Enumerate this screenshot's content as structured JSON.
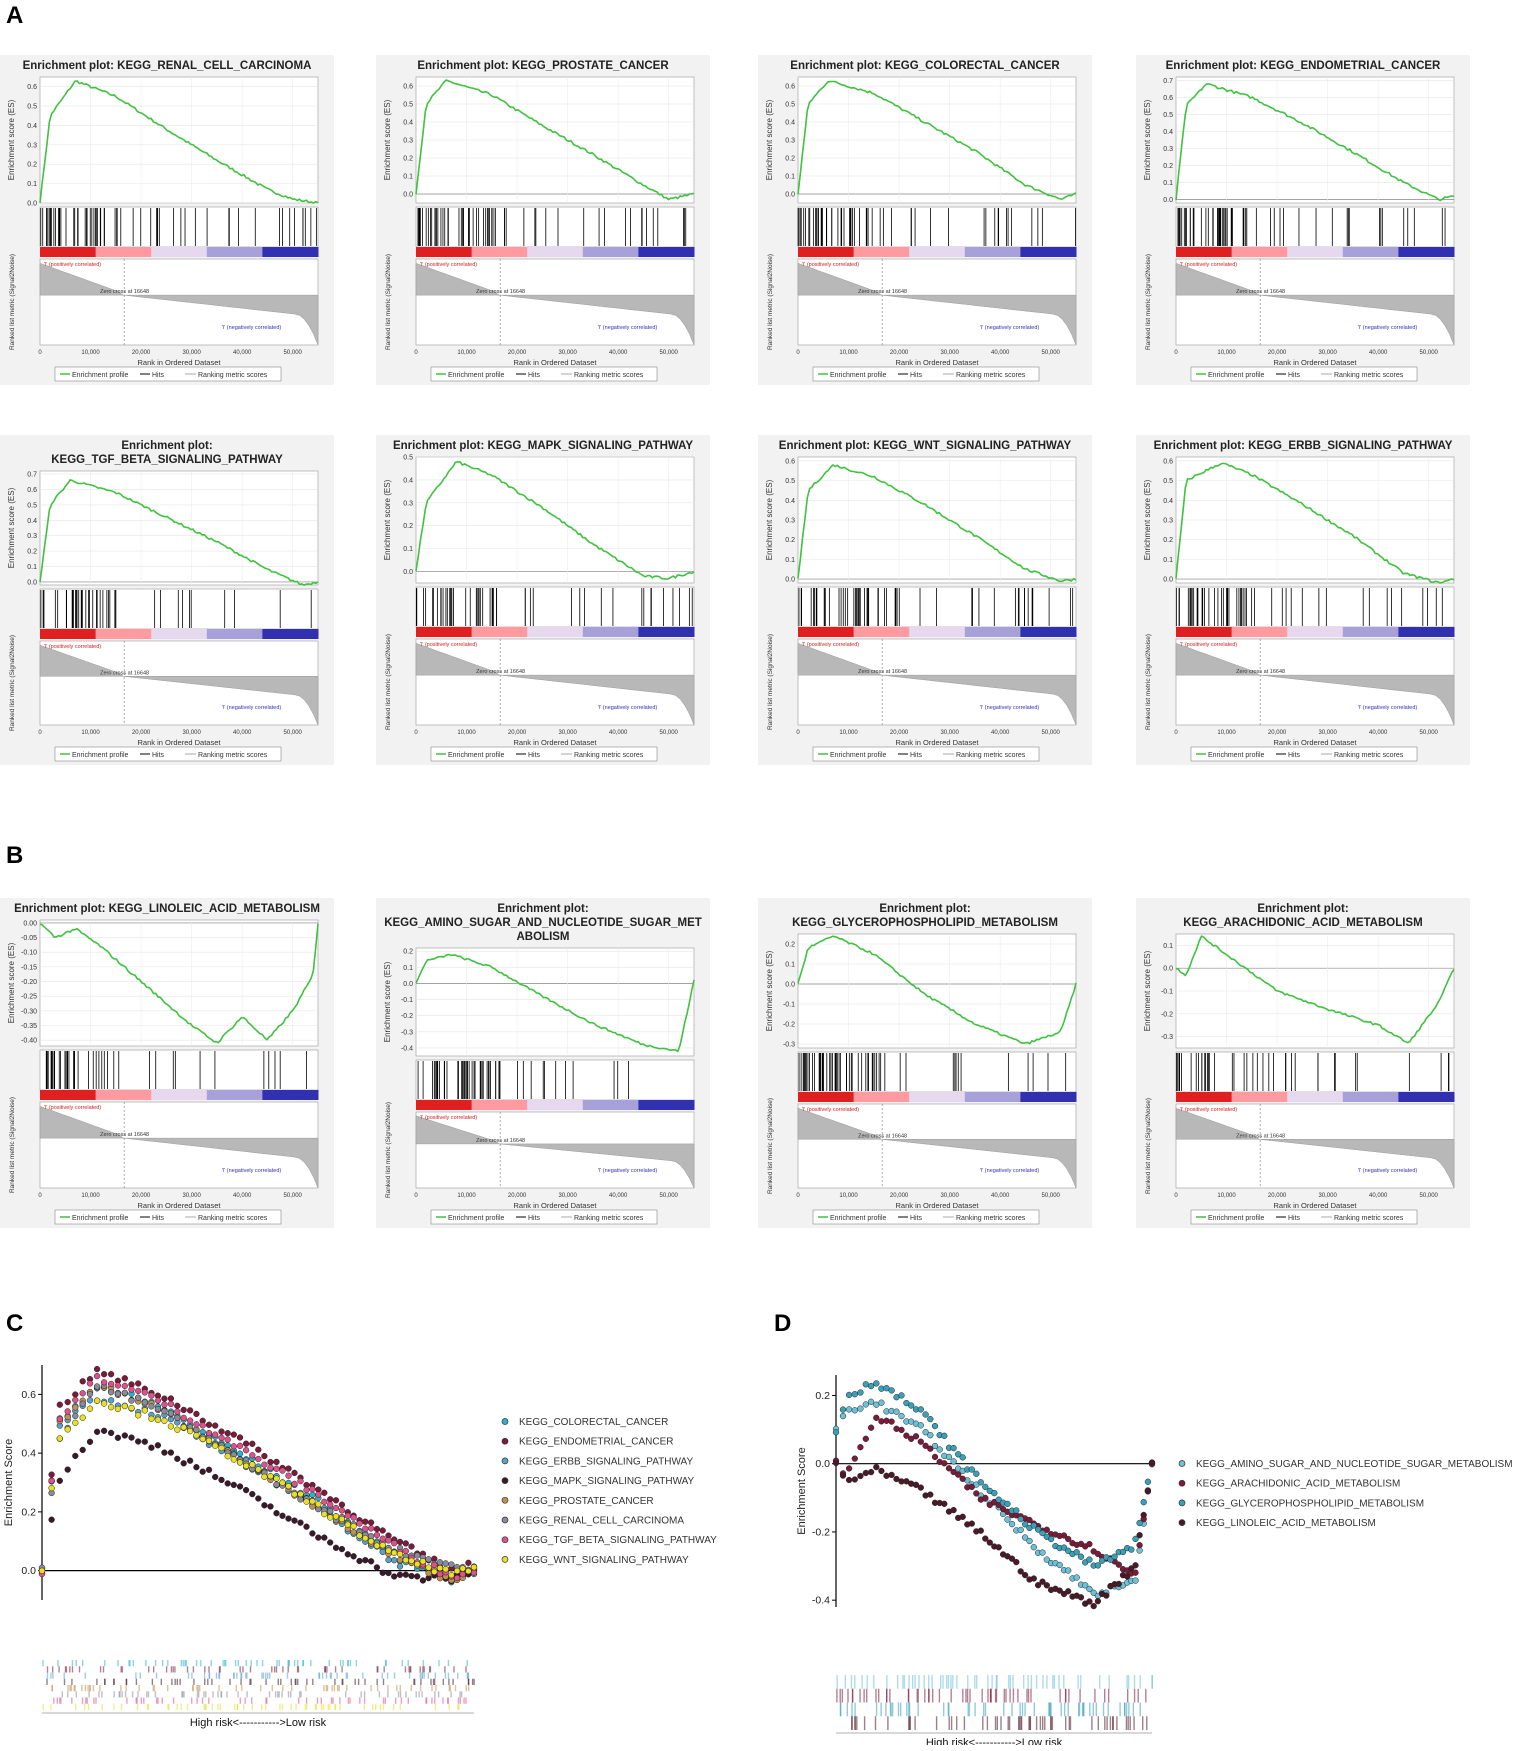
{
  "panels": {
    "A": "A",
    "B": "B",
    "C": "C",
    "D": "D"
  },
  "common": {
    "ylabel_es": "Enrichment score (ES)",
    "ylabel_metric": "Ranked list metric (Signal2Noise)",
    "xlabel": "Rank in Ordered Dataset",
    "legend_profile": "Enrichment profile",
    "legend_hits": "Hits",
    "legend_metric": "Ranking metric scores",
    "pos_label": "'l' (positively correlated)",
    "neg_label": "'l' (negatively correlated)",
    "zero_cross": "Zero cross at 16648",
    "x_ticks": [
      "0",
      "10,000",
      "20,000",
      "30,000",
      "40,000",
      "50,000"
    ]
  },
  "chart_data": [
    {
      "type": "line",
      "id": "A1",
      "title_lines": [
        "Enrichment plot: KEGG_RENAL_CELL_CARCINOMA"
      ],
      "ylim": [
        0,
        0.65
      ],
      "yticks": [
        "0.0",
        "0.1",
        "0.2",
        "0.3",
        "0.4",
        "0.5",
        "0.6"
      ],
      "x": [
        0,
        2000,
        7000,
        15000,
        25000,
        35000,
        45000,
        50000,
        55000
      ],
      "es": [
        0,
        0.45,
        0.63,
        0.55,
        0.38,
        0.22,
        0.07,
        0.02,
        0
      ]
    },
    {
      "type": "line",
      "id": "A2",
      "title_lines": [
        "Enrichment plot: KEGG_PROSTATE_CANCER"
      ],
      "ylim": [
        -0.05,
        0.65
      ],
      "yticks": [
        "0.0",
        "0.1",
        "0.2",
        "0.3",
        "0.4",
        "0.5",
        "0.6"
      ],
      "x": [
        0,
        2000,
        6000,
        15000,
        25000,
        35000,
        45000,
        50000,
        55000
      ],
      "es": [
        0,
        0.5,
        0.63,
        0.55,
        0.38,
        0.22,
        0.05,
        -0.03,
        0
      ]
    },
    {
      "type": "line",
      "id": "A3",
      "title_lines": [
        "Enrichment plot: KEGG_COLORECTAL_CANCER"
      ],
      "ylim": [
        -0.05,
        0.65
      ],
      "yticks": [
        "0.0",
        "0.1",
        "0.2",
        "0.3",
        "0.4",
        "0.5",
        "0.6"
      ],
      "x": [
        0,
        2000,
        6000,
        15000,
        25000,
        35000,
        45000,
        52000,
        55000
      ],
      "es": [
        0,
        0.5,
        0.63,
        0.56,
        0.4,
        0.24,
        0.05,
        -0.03,
        0
      ]
    },
    {
      "type": "line",
      "id": "A4",
      "title_lines": [
        "Enrichment plot: KEGG_ENDOMETRIAL_CANCER"
      ],
      "ylim": [
        -0.02,
        0.72
      ],
      "yticks": [
        "0.0",
        "0.1",
        "0.2",
        "0.3",
        "0.4",
        "0.5",
        "0.6",
        "0.7"
      ],
      "x": [
        0,
        2000,
        6000,
        15000,
        25000,
        35000,
        45000,
        52000,
        55000
      ],
      "es": [
        0,
        0.55,
        0.68,
        0.6,
        0.45,
        0.28,
        0.1,
        0,
        0.02
      ]
    },
    {
      "type": "line",
      "id": "A5",
      "title_lines": [
        "Enrichment plot:",
        "KEGG_TGF_BETA_SIGNALING_PATHWAY"
      ],
      "ylim": [
        -0.02,
        0.72
      ],
      "yticks": [
        "0.0",
        "0.1",
        "0.2",
        "0.3",
        "0.4",
        "0.5",
        "0.6",
        "0.7"
      ],
      "x": [
        0,
        2000,
        6000,
        15000,
        25000,
        35000,
        45000,
        52000,
        55000
      ],
      "es": [
        0,
        0.5,
        0.66,
        0.58,
        0.42,
        0.26,
        0.08,
        -0.02,
        0
      ]
    },
    {
      "type": "line",
      "id": "A6",
      "title_lines": [
        "Enrichment plot: KEGG_MAPK_SIGNALING_PATHWAY"
      ],
      "ylim": [
        -0.05,
        0.5
      ],
      "yticks": [
        "0.0",
        "0.1",
        "0.2",
        "0.3",
        "0.4",
        "0.5"
      ],
      "x": [
        0,
        2000,
        8000,
        15000,
        25000,
        35000,
        45000,
        50000,
        55000
      ],
      "es": [
        0,
        0.3,
        0.48,
        0.42,
        0.28,
        0.12,
        -0.02,
        -0.03,
        0
      ]
    },
    {
      "type": "line",
      "id": "A7",
      "title_lines": [
        "Enrichment plot: KEGG_WNT_SIGNALING_PATHWAY"
      ],
      "ylim": [
        -0.02,
        0.62
      ],
      "yticks": [
        "0.0",
        "0.1",
        "0.2",
        "0.3",
        "0.4",
        "0.5",
        "0.6"
      ],
      "x": [
        0,
        2000,
        7000,
        15000,
        25000,
        35000,
        45000,
        52000,
        55000
      ],
      "es": [
        0,
        0.45,
        0.58,
        0.52,
        0.38,
        0.22,
        0.05,
        -0.01,
        0
      ]
    },
    {
      "type": "line",
      "id": "A8",
      "title_lines": [
        "Enrichment plot: KEGG_ERBB_SIGNALING_PATHWAY"
      ],
      "ylim": [
        -0.02,
        0.62
      ],
      "yticks": [
        "0.0",
        "0.1",
        "0.2",
        "0.3",
        "0.4",
        "0.5",
        "0.6"
      ],
      "x": [
        0,
        2000,
        9000,
        15000,
        25000,
        35000,
        45000,
        52000,
        55000
      ],
      "es": [
        0,
        0.5,
        0.59,
        0.53,
        0.38,
        0.22,
        0.03,
        -0.02,
        0
      ]
    },
    {
      "type": "line",
      "id": "B1",
      "title_lines": [
        "Enrichment plot: KEGG_LINOLEIC_ACID_METABOLISM"
      ],
      "ylim": [
        -0.42,
        0.01
      ],
      "yticks": [
        "0.00",
        "-0.05",
        "-0.10",
        "-0.15",
        "-0.20",
        "-0.25",
        "-0.30",
        "-0.35",
        "-0.40"
      ],
      "x": [
        0,
        3000,
        7000,
        12000,
        20000,
        30000,
        35000,
        40000,
        45000,
        50000,
        54000,
        55000
      ],
      "es": [
        0,
        -0.05,
        -0.02,
        -0.08,
        -0.2,
        -0.35,
        -0.41,
        -0.32,
        -0.4,
        -0.3,
        -0.18,
        0
      ]
    },
    {
      "type": "line",
      "id": "B2",
      "title_lines": [
        "Enrichment plot:",
        "KEGG_AMINO_SUGAR_AND_NUCLEOTIDE_SUGAR_MET",
        "ABOLISM"
      ],
      "ylim": [
        -0.45,
        0.22
      ],
      "yticks": [
        "0.2",
        "0.1",
        "0.0",
        "-0.1",
        "-0.2",
        "-0.3",
        "-0.4"
      ],
      "x": [
        0,
        2000,
        7000,
        15000,
        25000,
        35000,
        45000,
        52000,
        55000
      ],
      "es": [
        0,
        0.14,
        0.18,
        0.1,
        -0.08,
        -0.25,
        -0.38,
        -0.42,
        0.02
      ]
    },
    {
      "type": "line",
      "id": "B3",
      "title_lines": [
        "Enrichment plot:",
        "KEGG_GLYCEROPHOSPHOLIPID_METABOLISM"
      ],
      "ylim": [
        -0.32,
        0.25
      ],
      "yticks": [
        "0.2",
        "0.1",
        "0.0",
        "-0.1",
        "-0.2",
        "-0.3"
      ],
      "x": [
        0,
        2000,
        7000,
        15000,
        25000,
        35000,
        45000,
        52000,
        55000
      ],
      "es": [
        0,
        0.18,
        0.24,
        0.15,
        -0.05,
        -0.2,
        -0.3,
        -0.24,
        0
      ]
    },
    {
      "type": "line",
      "id": "B4",
      "title_lines": [
        "Enrichment plot:",
        "KEGG_ARACHIDONIC_ACID_METABOLISM"
      ],
      "ylim": [
        -0.35,
        0.15
      ],
      "yticks": [
        "0.1",
        "0.0",
        "-0.1",
        "-0.2",
        "-0.3"
      ],
      "x": [
        0,
        2000,
        5000,
        10000,
        20000,
        30000,
        40000,
        46000,
        52000,
        55000
      ],
      "es": [
        0,
        -0.03,
        0.14,
        0.06,
        -0.1,
        -0.18,
        -0.25,
        -0.33,
        -0.15,
        0
      ]
    },
    {
      "type": "scatter",
      "id": "C",
      "ylabel": "Enrichment Score",
      "xlabel": "High risk<----------->Low risk",
      "yticks": [
        "0.0",
        "0.2",
        "0.4",
        "0.6"
      ],
      "ylim": [
        -0.1,
        0.7
      ],
      "series": [
        {
          "name": "KEGG_COLORECTAL_CANCER",
          "color": "#2bb3c9",
          "es": [
            0,
            0.5,
            0.63,
            0.56,
            0.4,
            0.24,
            0.05,
            -0.03,
            0
          ]
        },
        {
          "name": "KEGG_ENDOMETRIAL_CANCER",
          "color": "#7a1b3a",
          "es": [
            0,
            0.55,
            0.68,
            0.6,
            0.45,
            0.28,
            0.1,
            0,
            0.02
          ]
        },
        {
          "name": "KEGG_ERBB_SIGNALING_PATHWAY",
          "color": "#5aa0c8",
          "es": [
            0,
            0.5,
            0.59,
            0.53,
            0.38,
            0.22,
            0.03,
            -0.02,
            0
          ]
        },
        {
          "name": "KEGG_MAPK_SIGNALING_PATHWAY",
          "color": "#3a1a2a",
          "es": [
            0,
            0.3,
            0.48,
            0.42,
            0.28,
            0.12,
            -0.02,
            -0.03,
            0
          ]
        },
        {
          "name": "KEGG_PROSTATE_CANCER",
          "color": "#c09050",
          "es": [
            0,
            0.5,
            0.63,
            0.55,
            0.38,
            0.22,
            0.05,
            -0.03,
            0
          ]
        },
        {
          "name": "KEGG_RENAL_CELL_CARCINOMA",
          "color": "#8a8a9a",
          "es": [
            0,
            0.45,
            0.63,
            0.55,
            0.38,
            0.22,
            0.07,
            0.02,
            0
          ]
        },
        {
          "name": "KEGG_TGF_BETA_SIGNALING_PATHWAY",
          "color": "#e0508a",
          "es": [
            0,
            0.5,
            0.66,
            0.58,
            0.42,
            0.26,
            0.08,
            -0.02,
            0
          ]
        },
        {
          "name": "KEGG_WNT_SIGNALING_PATHWAY",
          "color": "#e8e020",
          "es": [
            0,
            0.45,
            0.58,
            0.52,
            0.38,
            0.22,
            0.05,
            -0.01,
            0
          ]
        }
      ]
    },
    {
      "type": "scatter",
      "id": "D",
      "ylabel": "Enrichment Score",
      "xlabel": "High risk<----------->Low risk",
      "yticks": [
        "0.2",
        "0.0",
        "-0.2",
        "-0.4"
      ],
      "ylim": [
        -0.42,
        0.26
      ],
      "series": [
        {
          "name": "KEGG_AMINO_SUGAR_AND_NUCLEOTIDE_SUGAR_METABOLISM",
          "color": "#6cc0d8",
          "es": [
            0.1,
            0.16,
            0.18,
            0.1,
            -0.08,
            -0.25,
            -0.38,
            -0.35,
            0
          ]
        },
        {
          "name": "KEGG_ARACHIDONIC_ACID_METABOLISM",
          "color": "#7a1b3a",
          "es": [
            0,
            -0.03,
            0.14,
            0.06,
            -0.1,
            -0.18,
            -0.25,
            -0.33,
            0
          ]
        },
        {
          "name": "KEGG_GLYCEROPHOSPHOLIPID_METABOLISM",
          "color": "#3aa0b8",
          "es": [
            0.1,
            0.2,
            0.24,
            0.15,
            -0.05,
            -0.2,
            -0.3,
            -0.24,
            0
          ]
        },
        {
          "name": "KEGG_LINOLEIC_ACID_METABOLISM",
          "color": "#4a1a28",
          "es": [
            0,
            -0.05,
            -0.02,
            -0.08,
            -0.2,
            -0.35,
            -0.41,
            -0.3,
            0
          ]
        }
      ]
    }
  ]
}
